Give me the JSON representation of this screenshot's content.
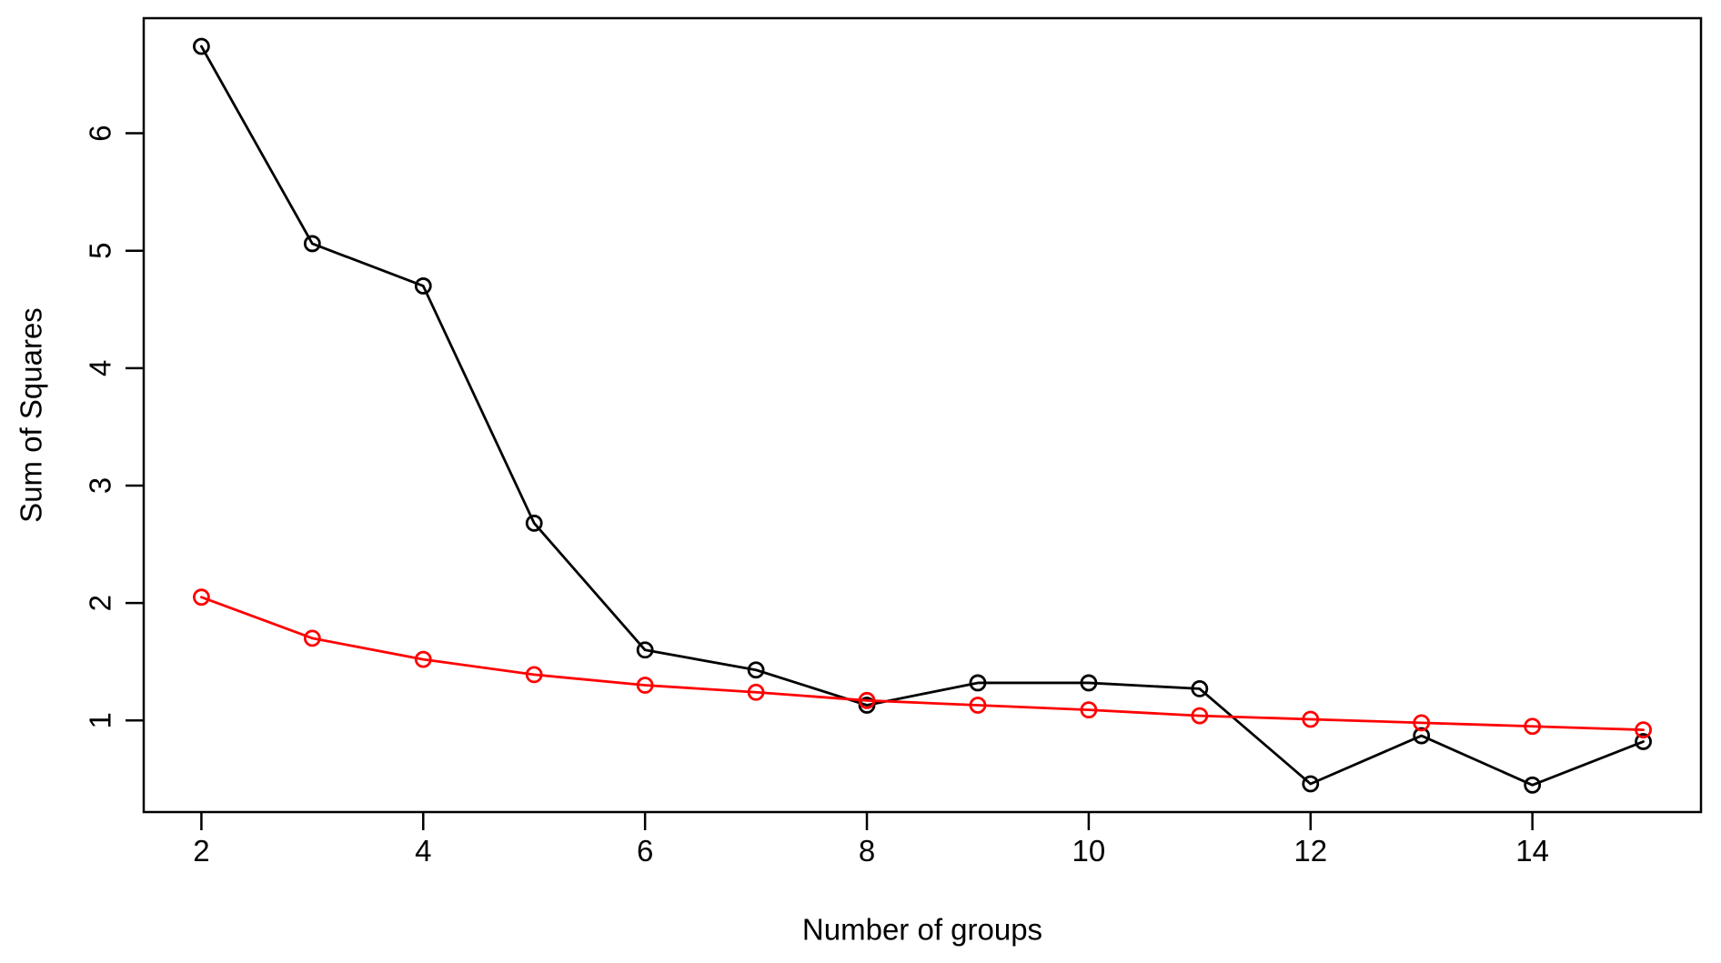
{
  "chart_data": {
    "type": "line",
    "title": "",
    "xlabel": "Number of groups",
    "ylabel": "Sum of Squares",
    "x": [
      2,
      3,
      4,
      5,
      6,
      7,
      8,
      9,
      10,
      11,
      12,
      13,
      14,
      15
    ],
    "x_ticks": [
      2,
      4,
      6,
      8,
      10,
      12,
      14
    ],
    "y_ticks": [
      1,
      2,
      3,
      4,
      5,
      6
    ],
    "xlim": [
      1.48,
      15.52
    ],
    "ylim": [
      0.22,
      6.98
    ],
    "grid": false,
    "legend": "none",
    "background": "#ffffff",
    "marker": "open-circle",
    "series": [
      {
        "name": "black",
        "color": "#000000",
        "values": [
          6.74,
          5.06,
          4.7,
          2.68,
          1.6,
          1.43,
          1.13,
          1.32,
          1.32,
          1.27,
          0.46,
          0.87,
          0.45,
          0.82
        ]
      },
      {
        "name": "red",
        "color": "#ff0000",
        "values": [
          2.05,
          1.7,
          1.52,
          1.39,
          1.3,
          1.24,
          1.17,
          1.13,
          1.09,
          1.04,
          1.01,
          0.98,
          0.95,
          0.92
        ]
      }
    ]
  }
}
